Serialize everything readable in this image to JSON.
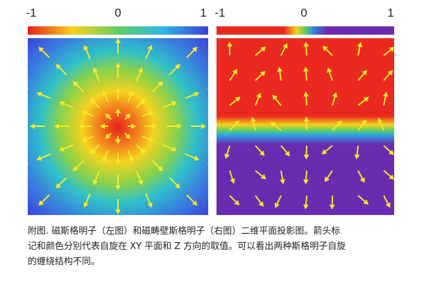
{
  "figure": {
    "panels": [
      {
        "colorbar": {
          "ticks": [
            -1,
            0,
            1
          ]
        }
      },
      {
        "colorbar": {
          "ticks": [
            -1,
            0,
            1
          ]
        }
      }
    ],
    "caption": [
      "附图. 磁斯格明子（左图）和磁畴壁斯格明子（右图）二维平面投影图。箭头标",
      "记和颜色分别代表自旋在 XY 平面和 Z 方向的取值。可以看出两种斯格明子自旋",
      "的缠绕结构不同。"
    ]
  }
}
